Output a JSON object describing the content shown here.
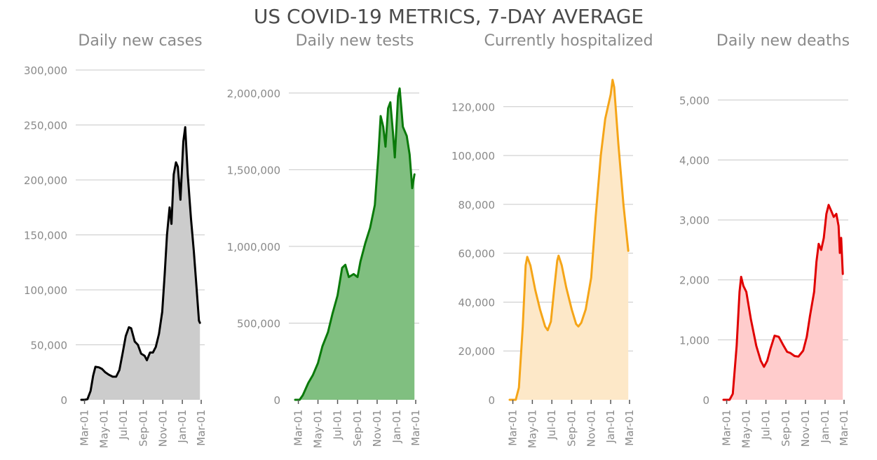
{
  "figure": {
    "title": "US COVID-19 METRICS, 7-DAY AVERAGE"
  },
  "chart_data": [
    {
      "type": "area",
      "title": "Daily new cases",
      "xlabel": "",
      "ylabel": "",
      "color_line": "#000000",
      "color_fill": "#cccccc",
      "ylim": [
        0,
        300000
      ],
      "yticks": [
        0,
        50000,
        100000,
        150000,
        200000,
        250000,
        300000
      ],
      "ytick_labels": [
        "0",
        "50,000",
        "100,000",
        "150,000",
        "200,000",
        "250,000",
        "300,000"
      ],
      "xticks": [
        "2020-03-01",
        "2020-05-01",
        "2020-07-01",
        "2020-09-01",
        "2020-11-01",
        "2021-01-01",
        "2021-03-01"
      ],
      "xtick_labels": [
        "Mar-01",
        "May-01",
        "Jul-01",
        "Sep-01",
        "Nov-01",
        "Jan-01",
        "Mar-01"
      ],
      "grid": true,
      "series": [
        {
          "points": [
            [
              "2020-02-20",
              0
            ],
            [
              "2020-03-01",
              0
            ],
            [
              "2020-03-10",
              500
            ],
            [
              "2020-03-20",
              8000
            ],
            [
              "2020-03-28",
              22000
            ],
            [
              "2020-04-04",
              30000
            ],
            [
              "2020-04-15",
              29500
            ],
            [
              "2020-04-25",
              28000
            ],
            [
              "2020-05-05",
              25000
            ],
            [
              "2020-05-15",
              23000
            ],
            [
              "2020-05-28",
              21000
            ],
            [
              "2020-06-08",
              21000
            ],
            [
              "2020-06-18",
              27000
            ],
            [
              "2020-06-28",
              42000
            ],
            [
              "2020-07-08",
              58000
            ],
            [
              "2020-07-18",
              66000
            ],
            [
              "2020-07-25",
              65000
            ],
            [
              "2020-08-05",
              53000
            ],
            [
              "2020-08-15",
              50000
            ],
            [
              "2020-08-25",
              42000
            ],
            [
              "2020-09-05",
              40000
            ],
            [
              "2020-09-12",
              36000
            ],
            [
              "2020-09-22",
              43000
            ],
            [
              "2020-10-01",
              43000
            ],
            [
              "2020-10-10",
              48000
            ],
            [
              "2020-10-20",
              60000
            ],
            [
              "2020-10-30",
              80000
            ],
            [
              "2020-11-07",
              115000
            ],
            [
              "2020-11-14",
              150000
            ],
            [
              "2020-11-22",
              175000
            ],
            [
              "2020-11-28",
              160000
            ],
            [
              "2020-12-05",
              205000
            ],
            [
              "2020-12-12",
              216000
            ],
            [
              "2020-12-18",
              212000
            ],
            [
              "2020-12-26",
              182000
            ],
            [
              "2021-01-04",
              235000
            ],
            [
              "2021-01-10",
              248000
            ],
            [
              "2021-01-18",
              205000
            ],
            [
              "2021-01-28",
              165000
            ],
            [
              "2021-02-06",
              135000
            ],
            [
              "2021-02-15",
              100000
            ],
            [
              "2021-02-22",
              72000
            ],
            [
              "2021-02-25",
              70000
            ]
          ]
        }
      ]
    },
    {
      "type": "area",
      "title": "Daily new tests",
      "xlabel": "",
      "ylabel": "",
      "color_line": "#0a7a0a",
      "color_fill": "#80bf80",
      "ylim": [
        0,
        2150000
      ],
      "yticks": [
        0,
        500000,
        1000000,
        1500000,
        2000000
      ],
      "ytick_labels": [
        "0",
        "500,000",
        "1,000,000",
        "1,500,000",
        "2,000,000"
      ],
      "xticks": [
        "2020-03-01",
        "2020-05-01",
        "2020-07-01",
        "2020-09-01",
        "2020-11-01",
        "2021-01-01",
        "2021-03-01"
      ],
      "xtick_labels": [
        "Mar-01",
        "May-01",
        "Jul-01",
        "Sep-01",
        "Nov-01",
        "Jan-01",
        "Mar-01"
      ],
      "grid": true,
      "series": [
        {
          "points": [
            [
              "2020-02-20",
              0
            ],
            [
              "2020-03-05",
              0
            ],
            [
              "2020-03-15",
              30000
            ],
            [
              "2020-04-01",
              110000
            ],
            [
              "2020-04-15",
              160000
            ],
            [
              "2020-05-01",
              240000
            ],
            [
              "2020-05-15",
              350000
            ],
            [
              "2020-06-01",
              440000
            ],
            [
              "2020-06-15",
              560000
            ],
            [
              "2020-07-01",
              680000
            ],
            [
              "2020-07-15",
              860000
            ],
            [
              "2020-07-25",
              880000
            ],
            [
              "2020-08-05",
              800000
            ],
            [
              "2020-08-20",
              820000
            ],
            [
              "2020-09-01",
              800000
            ],
            [
              "2020-09-10",
              900000
            ],
            [
              "2020-09-25",
              1020000
            ],
            [
              "2020-10-10",
              1120000
            ],
            [
              "2020-10-25",
              1270000
            ],
            [
              "2020-11-05",
              1600000
            ],
            [
              "2020-11-12",
              1850000
            ],
            [
              "2020-11-20",
              1780000
            ],
            [
              "2020-11-27",
              1650000
            ],
            [
              "2020-12-05",
              1900000
            ],
            [
              "2020-12-12",
              1940000
            ],
            [
              "2020-12-20",
              1750000
            ],
            [
              "2020-12-26",
              1580000
            ],
            [
              "2021-01-05",
              1980000
            ],
            [
              "2021-01-10",
              2030000
            ],
            [
              "2021-01-20",
              1780000
            ],
            [
              "2021-02-01",
              1720000
            ],
            [
              "2021-02-10",
              1600000
            ],
            [
              "2021-02-18",
              1380000
            ],
            [
              "2021-02-25",
              1470000
            ]
          ]
        }
      ]
    },
    {
      "type": "area",
      "title": "Currently hospitalized",
      "xlabel": "",
      "ylabel": "",
      "color_line": "#f5a518",
      "color_fill": "#fde8c8",
      "ylim": [
        0,
        135000
      ],
      "yticks": [
        0,
        20000,
        40000,
        60000,
        80000,
        100000,
        120000
      ],
      "ytick_labels": [
        "0",
        "20,000",
        "40,000",
        "60,000",
        "80,000",
        "100,000",
        "120,000"
      ],
      "xticks": [
        "2020-03-01",
        "2020-05-01",
        "2020-07-01",
        "2020-09-01",
        "2020-11-01",
        "2021-01-01",
        "2021-03-01"
      ],
      "xtick_labels": [
        "Mar-01",
        "May-01",
        "Jul-01",
        "Sep-01",
        "Nov-01",
        "Jan-01",
        "Mar-01"
      ],
      "grid": true,
      "series": [
        {
          "points": [
            [
              "2020-02-20",
              0
            ],
            [
              "2020-03-10",
              0
            ],
            [
              "2020-03-20",
              5000
            ],
            [
              "2020-04-01",
              30000
            ],
            [
              "2020-04-10",
              55000
            ],
            [
              "2020-04-15",
              58500
            ],
            [
              "2020-04-25",
              55000
            ],
            [
              "2020-05-10",
              45000
            ],
            [
              "2020-05-25",
              37000
            ],
            [
              "2020-06-10",
              30000
            ],
            [
              "2020-06-18",
              28500
            ],
            [
              "2020-06-28",
              32000
            ],
            [
              "2020-07-08",
              45000
            ],
            [
              "2020-07-18",
              57000
            ],
            [
              "2020-07-22",
              59000
            ],
            [
              "2020-08-01",
              55000
            ],
            [
              "2020-08-15",
              46000
            ],
            [
              "2020-09-01",
              37000
            ],
            [
              "2020-09-15",
              31000
            ],
            [
              "2020-09-22",
              30000
            ],
            [
              "2020-10-01",
              31500
            ],
            [
              "2020-10-15",
              37000
            ],
            [
              "2020-11-01",
              50000
            ],
            [
              "2020-11-15",
              75000
            ],
            [
              "2020-12-01",
              100000
            ],
            [
              "2020-12-15",
              115000
            ],
            [
              "2021-01-01",
              125000
            ],
            [
              "2021-01-07",
              131000
            ],
            [
              "2021-01-12",
              128000
            ],
            [
              "2021-01-25",
              105000
            ],
            [
              "2021-02-10",
              80000
            ],
            [
              "2021-02-25",
              61000
            ]
          ]
        }
      ]
    },
    {
      "type": "area",
      "title": "Daily new deaths",
      "xlabel": "",
      "ylabel": "",
      "color_line": "#e00000",
      "color_fill": "#ffcccc",
      "ylim": [
        0,
        5500
      ],
      "yticks": [
        0,
        1000,
        2000,
        3000,
        4000,
        5000
      ],
      "ytick_labels": [
        "0",
        "1,000",
        "2,000",
        "3,000",
        "4,000",
        "5,000"
      ],
      "xticks": [
        "2020-03-01",
        "2020-05-01",
        "2020-07-01",
        "2020-09-01",
        "2020-11-01",
        "2021-01-01",
        "2021-03-01"
      ],
      "xtick_labels": [
        "Mar-01",
        "May-01",
        "Jul-01",
        "Sep-01",
        "Nov-01",
        "Jan-01",
        "Mar-01"
      ],
      "grid": true,
      "series": [
        {
          "points": [
            [
              "2020-02-20",
              0
            ],
            [
              "2020-03-10",
              0
            ],
            [
              "2020-03-20",
              100
            ],
            [
              "2020-04-01",
              900
            ],
            [
              "2020-04-10",
              1800
            ],
            [
              "2020-04-15",
              2050
            ],
            [
              "2020-04-22",
              1900
            ],
            [
              "2020-05-01",
              1800
            ],
            [
              "2020-05-15",
              1350
            ],
            [
              "2020-06-01",
              900
            ],
            [
              "2020-06-15",
              650
            ],
            [
              "2020-06-25",
              550
            ],
            [
              "2020-07-05",
              650
            ],
            [
              "2020-07-15",
              850
            ],
            [
              "2020-07-28",
              1070
            ],
            [
              "2020-08-10",
              1050
            ],
            [
              "2020-08-25",
              900
            ],
            [
              "2020-09-05",
              800
            ],
            [
              "2020-09-15",
              780
            ],
            [
              "2020-09-28",
              730
            ],
            [
              "2020-10-10",
              720
            ],
            [
              "2020-10-25",
              820
            ],
            [
              "2020-11-05",
              1050
            ],
            [
              "2020-11-15",
              1400
            ],
            [
              "2020-11-28",
              1800
            ],
            [
              "2020-12-05",
              2300
            ],
            [
              "2020-12-12",
              2600
            ],
            [
              "2020-12-20",
              2500
            ],
            [
              "2020-12-28",
              2700
            ],
            [
              "2021-01-05",
              3100
            ],
            [
              "2021-01-12",
              3250
            ],
            [
              "2021-01-20",
              3150
            ],
            [
              "2021-01-28",
              3050
            ],
            [
              "2021-02-05",
              3100
            ],
            [
              "2021-02-12",
              2900
            ],
            [
              "2021-02-16",
              2450
            ],
            [
              "2021-02-20",
              2700
            ],
            [
              "2021-02-25",
              2100
            ]
          ]
        }
      ]
    }
  ]
}
